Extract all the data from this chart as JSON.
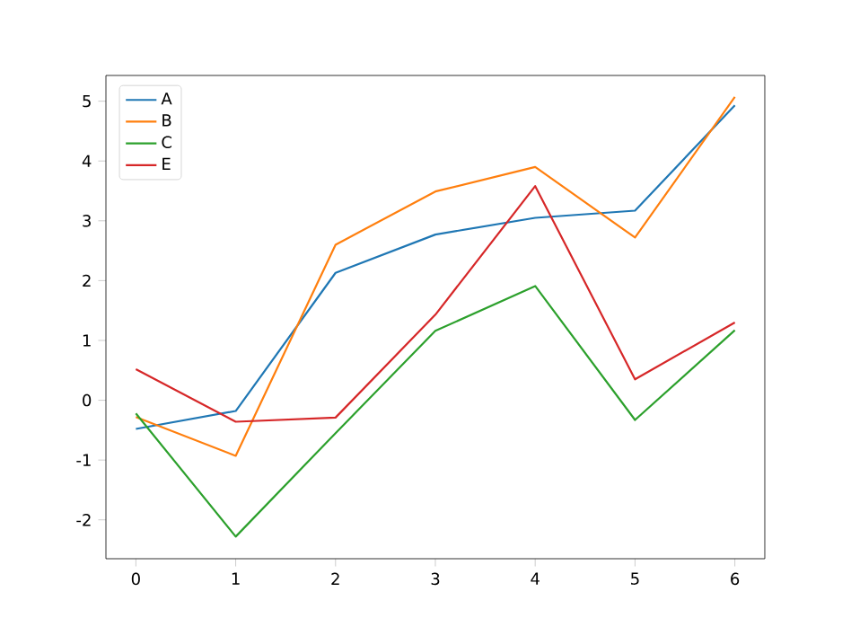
{
  "chart_data": {
    "type": "line",
    "x": [
      0,
      1,
      2,
      3,
      4,
      5,
      6
    ],
    "xlim": [
      -0.3,
      6.3
    ],
    "xticks": [
      0,
      1,
      2,
      3,
      4,
      5,
      6
    ],
    "ylim": [
      -2.65,
      5.43
    ],
    "yticks": [
      -2,
      -1,
      0,
      1,
      2,
      3,
      4,
      5
    ],
    "series": [
      {
        "name": "A",
        "color": "#1f77b4",
        "values": [
          -0.48,
          -0.18,
          2.13,
          2.77,
          3.05,
          3.17,
          4.93
        ]
      },
      {
        "name": "B",
        "color": "#ff7f0e",
        "values": [
          -0.28,
          -0.93,
          2.6,
          3.49,
          3.9,
          2.72,
          5.07
        ]
      },
      {
        "name": "C",
        "color": "#2ca02c",
        "values": [
          -0.22,
          -2.28,
          -0.55,
          1.16,
          1.91,
          -0.33,
          1.17
        ]
      },
      {
        "name": "E",
        "color": "#d62728",
        "values": [
          0.52,
          -0.36,
          -0.29,
          1.43,
          3.58,
          0.35,
          1.3
        ]
      }
    ],
    "legend": "top left",
    "grid": false,
    "marker": "none",
    "line_style": "solid"
  }
}
